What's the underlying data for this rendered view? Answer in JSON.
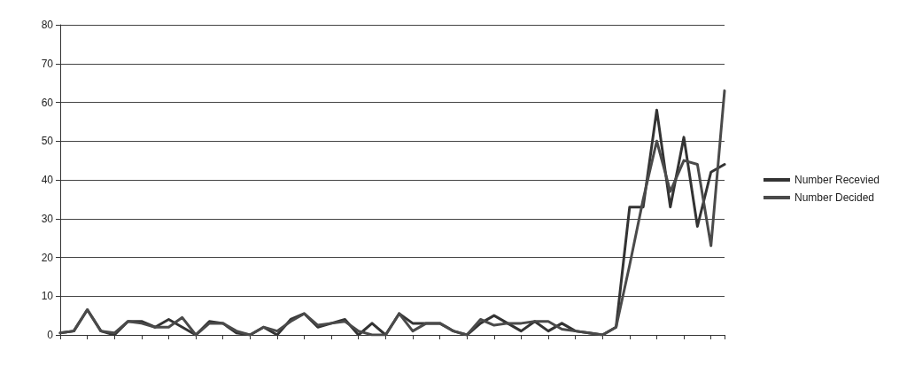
{
  "chart_data": {
    "type": "line",
    "categories": [
      null,
      null,
      null,
      null,
      null,
      null,
      null,
      null,
      null,
      null,
      null,
      null,
      null,
      null,
      null,
      null,
      null,
      null,
      null,
      null,
      null,
      null,
      null,
      null,
      null,
      null,
      null,
      null,
      null,
      null,
      null,
      null,
      null,
      null,
      null,
      null,
      null,
      null,
      null,
      null,
      null,
      null,
      null,
      null,
      null,
      null,
      null,
      null,
      null,
      null
    ],
    "series": [
      {
        "name": "Number Recevied",
        "color": "#333333",
        "values": [
          0.5,
          1,
          6.5,
          1,
          0,
          3.5,
          3.5,
          2,
          4,
          2,
          0,
          3.5,
          3,
          0.5,
          0,
          2,
          0,
          4,
          5.5,
          2,
          3,
          4,
          0,
          3,
          0,
          5.5,
          3,
          3,
          3,
          1,
          0,
          3,
          5,
          3,
          1,
          3.5,
          1,
          3,
          1,
          0.5,
          0,
          2,
          33,
          33,
          58,
          33,
          51,
          28,
          42,
          44
        ]
      },
      {
        "name": "Number Decided",
        "color": "#4a4a4a",
        "values": [
          0.5,
          1,
          6.5,
          1,
          0.5,
          3.5,
          3,
          2,
          2,
          4.5,
          0,
          3,
          3,
          1,
          0,
          2,
          1,
          3.5,
          5.5,
          2.5,
          3,
          3.5,
          1,
          0,
          0,
          5.5,
          1,
          3,
          3,
          1,
          0,
          4,
          2.5,
          3,
          3,
          3.5,
          3.5,
          1.5,
          1,
          0.5,
          0,
          2,
          18,
          35,
          50,
          37,
          45,
          44,
          23,
          63
        ]
      }
    ],
    "ylim": [
      0,
      80
    ],
    "yticks": [
      0,
      10,
      20,
      30,
      40,
      50,
      60,
      70,
      80
    ],
    "grid": "y",
    "legend": "right",
    "marker": "none",
    "line_style": "solid"
  }
}
